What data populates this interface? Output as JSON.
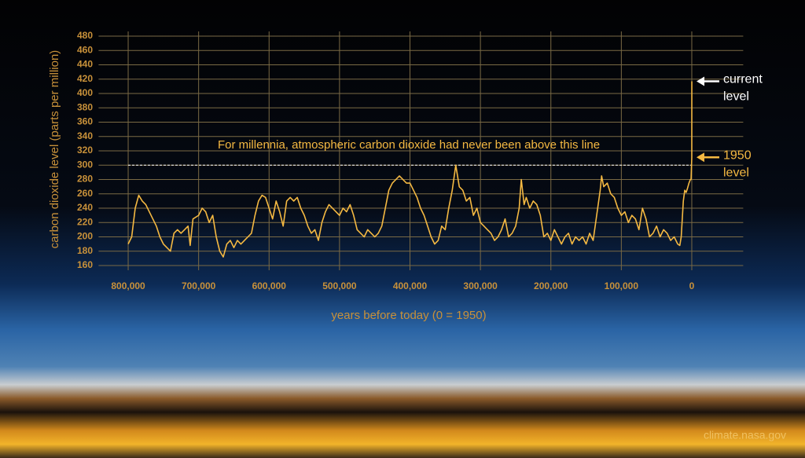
{
  "chart_data": {
    "type": "line",
    "y_label": "carbon dioxide level (parts per million)",
    "x_label": "years before today (0 = 1950)",
    "xlim": [
      842000,
      -73000
    ],
    "xticks": [
      {
        "value": 800000,
        "label": "800,000"
      },
      {
        "value": 700000,
        "label": "700,000"
      },
      {
        "value": 600000,
        "label": "600,000"
      },
      {
        "value": 500000,
        "label": "500,000"
      },
      {
        "value": 400000,
        "label": "400,000"
      },
      {
        "value": 300000,
        "label": "300,000"
      },
      {
        "value": 200000,
        "label": "200,000"
      },
      {
        "value": 100000,
        "label": "100,000"
      },
      0
    ],
    "ylim": [
      160,
      480
    ],
    "yticks": [
      160,
      180,
      200,
      220,
      240,
      260,
      280,
      300,
      320,
      340,
      360,
      380,
      400,
      420,
      440,
      460,
      480
    ],
    "grid": true,
    "series": [
      {
        "color": "#f5b942",
        "x": [
          800000,
          795000,
          790000,
          785000,
          780000,
          775000,
          770000,
          765000,
          760000,
          755000,
          750000,
          745000,
          740000,
          735000,
          730000,
          725000,
          720000,
          715000,
          712000,
          708000,
          700000,
          695000,
          690000,
          685000,
          680000,
          675000,
          670000,
          665000,
          660000,
          655000,
          650000,
          645000,
          640000,
          635000,
          630000,
          625000,
          620000,
          615000,
          610000,
          605000,
          600000,
          595000,
          590000,
          585000,
          580000,
          575000,
          570000,
          565000,
          560000,
          555000,
          550000,
          545000,
          540000,
          535000,
          530000,
          525000,
          520000,
          515000,
          510000,
          505000,
          500000,
          495000,
          490000,
          485000,
          480000,
          475000,
          470000,
          465000,
          460000,
          455000,
          450000,
          445000,
          440000,
          435000,
          430000,
          425000,
          420000,
          415000,
          410000,
          405000,
          400000,
          395000,
          390000,
          385000,
          380000,
          375000,
          370000,
          365000,
          360000,
          355000,
          350000,
          345000,
          340000,
          335000,
          330000,
          325000,
          320000,
          315000,
          310000,
          305000,
          300000,
          295000,
          290000,
          285000,
          280000,
          275000,
          270000,
          265000,
          260000,
          255000,
          250000,
          245000,
          242000,
          238000,
          235000,
          230000,
          225000,
          220000,
          215000,
          210000,
          205000,
          200000,
          195000,
          190000,
          185000,
          180000,
          175000,
          170000,
          165000,
          160000,
          155000,
          150000,
          145000,
          140000,
          135000,
          130000,
          128000,
          125000,
          120000,
          115000,
          110000,
          105000,
          100000,
          95000,
          90000,
          85000,
          80000,
          75000,
          70000,
          65000,
          60000,
          55000,
          50000,
          45000,
          40000,
          35000,
          30000,
          25000,
          20000,
          17000,
          15000,
          12000,
          10000,
          8000,
          6000,
          4000,
          2000,
          1000,
          0,
          -70
        ],
        "values": [
          190,
          200,
          240,
          258,
          250,
          245,
          235,
          225,
          215,
          200,
          190,
          185,
          180,
          205,
          210,
          205,
          210,
          215,
          188,
          225,
          230,
          240,
          235,
          220,
          230,
          200,
          180,
          172,
          190,
          195,
          185,
          195,
          190,
          195,
          200,
          205,
          230,
          250,
          258,
          255,
          240,
          225,
          250,
          235,
          215,
          250,
          255,
          250,
          255,
          240,
          230,
          215,
          205,
          210,
          195,
          220,
          235,
          245,
          240,
          235,
          230,
          240,
          235,
          245,
          230,
          210,
          205,
          200,
          210,
          205,
          200,
          205,
          215,
          240,
          265,
          275,
          280,
          285,
          280,
          275,
          275,
          265,
          255,
          240,
          230,
          215,
          200,
          190,
          195,
          215,
          210,
          240,
          265,
          300,
          270,
          265,
          250,
          255,
          230,
          240,
          220,
          215,
          210,
          205,
          195,
          200,
          210,
          225,
          200,
          205,
          215,
          240,
          280,
          245,
          255,
          240,
          250,
          245,
          230,
          200,
          205,
          195,
          210,
          200,
          190,
          200,
          205,
          190,
          200,
          195,
          200,
          190,
          205,
          195,
          230,
          265,
          285,
          270,
          275,
          260,
          255,
          240,
          230,
          235,
          220,
          230,
          225,
          210,
          240,
          225,
          200,
          205,
          215,
          200,
          210,
          205,
          195,
          200,
          190,
          188,
          200,
          250,
          265,
          262,
          268,
          275,
          280,
          280,
          311,
          417
        ]
      }
    ],
    "reference_line": {
      "value": 300,
      "text": "For millennia, atmospheric carbon dioxide had never been above this line"
    },
    "annotations": [
      {
        "lines": [
          "current",
          "level"
        ],
        "x": -70,
        "y": 417,
        "color": "#ffffff"
      },
      {
        "lines": [
          "1950",
          "level"
        ],
        "x": 0,
        "y": 311,
        "color": "#f5b942"
      }
    ],
    "source": "climate.nasa.gov"
  }
}
